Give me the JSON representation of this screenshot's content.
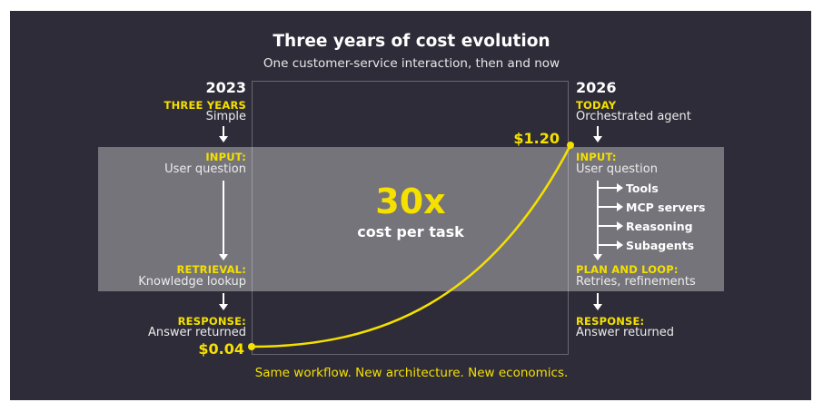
{
  "header": {
    "title": "Three years of cost evolution",
    "subtitle": "One customer-service interaction, then and now"
  },
  "center": {
    "multiplier": "30x",
    "caption": "cost per task"
  },
  "left": {
    "year": "2023",
    "era_label": "THREE YEARS",
    "era_text": "Simple",
    "steps": [
      {
        "label": "INPUT:",
        "text": "User question"
      },
      {
        "label": "RETRIEVAL:",
        "text": "Knowledge lookup"
      },
      {
        "label": "RESPONSE:",
        "text": "Answer returned"
      }
    ],
    "price": "$0.04"
  },
  "right": {
    "year": "2026",
    "era_label": "TODAY",
    "era_text": "Orchestrated agent",
    "steps": [
      {
        "label": "INPUT:",
        "text": "User question"
      },
      {
        "label": "PLAN AND LOOP:",
        "text": "Retries, refinements"
      },
      {
        "label": "RESPONSE:",
        "text": "Answer returned"
      }
    ],
    "tools": [
      "Tools",
      "MCP servers",
      "Reasoning",
      "Subagents"
    ],
    "price": "$1.20"
  },
  "footer": "Same workflow. New architecture. New economics.",
  "colors": {
    "background": "#2e2c38",
    "accent": "#f5e000",
    "text": "#ffffff"
  }
}
